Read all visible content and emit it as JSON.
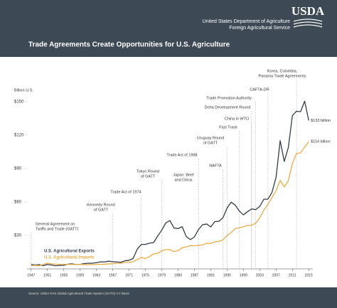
{
  "header": {
    "logo": "USDA",
    "agency": [
      "United States Department of Agriculture",
      "Foreign Agricultural Service"
    ]
  },
  "footer": {
    "source": "Source: USDA-FAS Global Agricultural Trade System (GATS)  CY Basis"
  },
  "chart_data": {
    "type": "line",
    "title": "Trade Agreements Create Opportunities for U.S. Agriculture",
    "y_label": "Billion U.S.",
    "x": [
      1947,
      1948,
      1949,
      1950,
      1951,
      1952,
      1953,
      1954,
      1955,
      1956,
      1957,
      1958,
      1959,
      1960,
      1961,
      1962,
      1963,
      1964,
      1965,
      1966,
      1967,
      1968,
      1969,
      1970,
      1971,
      1972,
      1973,
      1974,
      1975,
      1976,
      1977,
      1978,
      1979,
      1980,
      1981,
      1982,
      1983,
      1984,
      1985,
      1986,
      1987,
      1988,
      1989,
      1990,
      1991,
      1992,
      1993,
      1994,
      1995,
      1996,
      1997,
      1998,
      1999,
      2000,
      2001,
      2002,
      2003,
      2004,
      2005,
      2006,
      2007,
      2008,
      2009,
      2010,
      2011,
      2012,
      2013,
      2014,
      2015
    ],
    "series": [
      {
        "name": "U.S. Agricultural Exports",
        "color": "#333c46",
        "values": [
          4,
          3.5,
          3.8,
          2.9,
          4,
          3.4,
          2.8,
          3.1,
          3.2,
          4.2,
          4.5,
          3.9,
          4,
          4.8,
          5,
          5.1,
          5.6,
          6.3,
          6.2,
          6.9,
          6.4,
          6.2,
          5.9,
          7.3,
          7.7,
          9.4,
          17.7,
          21.9,
          21.9,
          23,
          23.6,
          29.4,
          34.7,
          41.2,
          43.3,
          36.6,
          36.1,
          37.8,
          29,
          26.2,
          28.7,
          35.3,
          39.6,
          40.2,
          37.6,
          42.4,
          42.6,
          45.9,
          54.6,
          59.8,
          57.1,
          51.8,
          48.4,
          51.2,
          53.7,
          53.1,
          56,
          62.4,
          62.5,
          68.6,
          82.2,
          114.9,
          96.3,
          108.7,
          137.4,
          141.3,
          140.9,
          150.3,
          133
        ],
        "value_labels": [
          null,
          null,
          null,
          null,
          null,
          null,
          null,
          null,
          null,
          null,
          null,
          null,
          null,
          null,
          null,
          null,
          null,
          null,
          null,
          null,
          null,
          null,
          null,
          null,
          null,
          null,
          null,
          null,
          null,
          null,
          null,
          null,
          null,
          null,
          null,
          null,
          null,
          null,
          null,
          null,
          null,
          null,
          null,
          null,
          null,
          null,
          null,
          null,
          null,
          null,
          null,
          null,
          null,
          null,
          null,
          null,
          null,
          null,
          null,
          null,
          null,
          null,
          null,
          null,
          null,
          null,
          null,
          null,
          "$133 billion"
        ]
      },
      {
        "name": "U.S. Agricultural Imports",
        "color": "#e9ac45",
        "values": [
          2.8,
          3.2,
          2.9,
          4,
          5.2,
          4.5,
          4.2,
          4,
          4,
          4,
          4,
          3.9,
          4.1,
          3.8,
          3.7,
          3.9,
          4,
          4.1,
          4.1,
          4.5,
          4.5,
          5,
          5,
          5.8,
          5.8,
          6.5,
          8.4,
          10.2,
          9.3,
          11,
          13.4,
          13.9,
          16.2,
          17.3,
          17.2,
          15.5,
          16.4,
          18.9,
          19.7,
          20.9,
          20.7,
          21,
          21.5,
          22.9,
          22.8,
          24.3,
          24.6,
          26,
          29.9,
          32.6,
          36.1,
          36.9,
          37.7,
          38.9,
          39,
          41,
          45.7,
          52.7,
          57.7,
          64,
          70.1,
          79.3,
          73.4,
          79,
          94.5,
          103.4,
          103.9,
          109.2,
          114
        ],
        "value_labels": [
          null,
          null,
          null,
          null,
          null,
          null,
          null,
          null,
          null,
          null,
          null,
          null,
          null,
          null,
          null,
          null,
          null,
          null,
          null,
          null,
          null,
          null,
          null,
          null,
          null,
          null,
          null,
          null,
          null,
          null,
          null,
          null,
          null,
          null,
          null,
          null,
          null,
          null,
          null,
          null,
          null,
          null,
          null,
          null,
          null,
          null,
          null,
          null,
          null,
          null,
          null,
          null,
          null,
          null,
          null,
          null,
          null,
          null,
          null,
          null,
          null,
          null,
          null,
          null,
          null,
          null,
          null,
          null,
          "$114 billion"
        ]
      }
    ],
    "xlim": [
      1946,
      2016
    ],
    "xticks": [
      1947,
      1951,
      1955,
      1959,
      1963,
      1967,
      1971,
      1975,
      1979,
      1983,
      1987,
      1991,
      1995,
      1999,
      2003,
      2007,
      2011,
      2015
    ],
    "ylim": [
      0,
      160
    ],
    "yticks": [
      {
        "value": 30,
        "label": "$30"
      },
      {
        "value": 60,
        "label": "$60"
      },
      {
        "value": 90,
        "label": "$90"
      },
      {
        "value": 120,
        "label": "$120"
      },
      {
        "value": 150,
        "label": "$150"
      }
    ],
    "grid": false,
    "annotations": [
      {
        "text": [
          "General Agreement on",
          "Tariffs and Trade (GATT)"
        ],
        "x": 1947
      },
      {
        "text": [
          "Kennedy Round",
          "of GATT"
        ],
        "x": 1967
      },
      {
        "text": [
          "Trade Act of 1974"
        ],
        "x": 1974
      },
      {
        "text": [
          "Tokyo Round",
          "of GATT"
        ],
        "x": 1979
      },
      {
        "text": [
          "Japan: Beef",
          "and Citrus"
        ],
        "x": 1988
      },
      {
        "text": [
          "Trade Act of 1988"
        ],
        "x": 1988
      },
      {
        "text": [
          "NAFTA"
        ],
        "x": 1994
      },
      {
        "text": [
          "Uruguay Round",
          "of GATT"
        ],
        "x": 1995
      },
      {
        "text": [
          "Fast Track"
        ],
        "x": 1998
      },
      {
        "text": [
          "China in WTO"
        ],
        "x": 2001
      },
      {
        "text": [
          "Doha Development Round"
        ],
        "x": 2001
      },
      {
        "text": [
          "Trade Promotion Authority"
        ],
        "x": 2002
      },
      {
        "text": [
          "CAFTA-DR"
        ],
        "x": 2005
      },
      {
        "text": [
          "Korea, Colombia,",
          "Panama Trade Agreements"
        ],
        "x": 2012
      }
    ]
  }
}
